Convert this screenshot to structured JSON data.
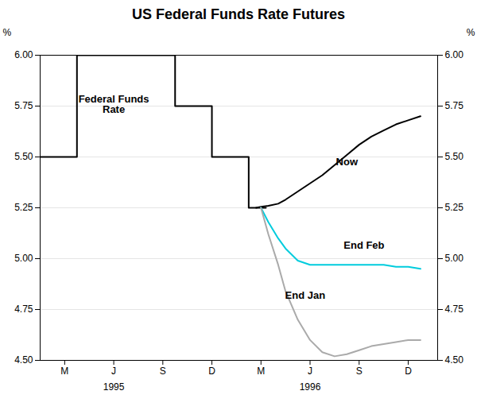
{
  "chart_data": {
    "type": "line",
    "title": "US Federal Funds Rate Futures",
    "xlim": [
      0.0,
      16.2
    ],
    "xticks": [
      {
        "value": 1,
        "label": "M"
      },
      {
        "value": 3,
        "label": "J"
      },
      {
        "value": 5,
        "label": "S"
      },
      {
        "value": 7,
        "label": "D"
      },
      {
        "value": 9,
        "label": "M"
      },
      {
        "value": 11,
        "label": "J"
      },
      {
        "value": 13,
        "label": "S"
      },
      {
        "value": 15,
        "label": "D"
      }
    ],
    "ylim": [
      4.5,
      6.0
    ],
    "yticks": [
      {
        "value": 4.5,
        "label": "4.50"
      },
      4.75,
      {
        "value": 5.0,
        "label": "5.00"
      },
      5.25,
      {
        "value": 5.5,
        "label": "5.50"
      },
      5.75,
      {
        "value": 6.0,
        "label": "6.00"
      }
    ],
    "y2lim": [
      4.5,
      6.0
    ],
    "y2ticks": [
      {
        "value": 4.5,
        "label": "4.50"
      },
      4.75,
      {
        "value": 5.0,
        "label": "5.00"
      },
      5.25,
      {
        "value": 5.5,
        "label": "5.50"
      },
      5.75,
      {
        "value": 6.0,
        "label": "6.00"
      }
    ],
    "ylabel": "%",
    "y2label": "%",
    "grid": true,
    "annotations": [
      {
        "text": "1995",
        "x": 3
      },
      {
        "text": "1996",
        "x": 11
      }
    ],
    "series": [
      {
        "name": "Federal Funds\nRate",
        "color": "#000000",
        "label_x": 3.0,
        "label_y": 5.76,
        "x": [
          0.0,
          1.5,
          1.5,
          5.5,
          5.5,
          7.0,
          7.0,
          8.5,
          8.5,
          9.2
        ],
        "values": [
          5.5,
          5.5,
          6.0,
          6.0,
          5.75,
          5.75,
          5.5,
          5.5,
          5.25,
          5.25
        ]
      },
      {
        "name": "Now",
        "color": "#000000",
        "label_x": 12.5,
        "label_y": 5.475,
        "x": [
          8.8,
          9.0,
          9.3,
          9.7,
          10.0,
          10.5,
          11.0,
          11.5,
          12.0,
          12.5,
          13.0,
          13.5,
          14.0,
          14.5,
          15.0,
          15.5
        ],
        "values": [
          5.25,
          5.255,
          5.26,
          5.27,
          5.29,
          5.33,
          5.37,
          5.41,
          5.46,
          5.51,
          5.56,
          5.6,
          5.63,
          5.66,
          5.68,
          5.7
        ]
      },
      {
        "name": "End Feb",
        "color": "#00ccdd",
        "label_x": 13.2,
        "label_y": 5.065,
        "x": [
          9.0,
          9.3,
          9.7,
          10.0,
          10.5,
          11.0,
          11.5,
          12.0,
          12.5,
          13.0,
          13.5,
          14.0,
          14.5,
          15.0,
          15.5
        ],
        "values": [
          5.25,
          5.18,
          5.1,
          5.05,
          4.99,
          4.97,
          4.97,
          4.97,
          4.97,
          4.97,
          4.97,
          4.97,
          4.96,
          4.96,
          4.95
        ]
      },
      {
        "name": "End Jan",
        "color": "#aaaaaa",
        "label_x": 10.8,
        "label_y": 4.82,
        "x": [
          9.0,
          9.3,
          9.7,
          10.0,
          10.5,
          11.0,
          11.5,
          12.0,
          12.5,
          13.0,
          13.5,
          14.0,
          14.5,
          15.0,
          15.5
        ],
        "values": [
          5.25,
          5.12,
          4.97,
          4.84,
          4.7,
          4.6,
          4.54,
          4.52,
          4.53,
          4.55,
          4.57,
          4.58,
          4.59,
          4.6,
          4.6
        ]
      }
    ]
  }
}
